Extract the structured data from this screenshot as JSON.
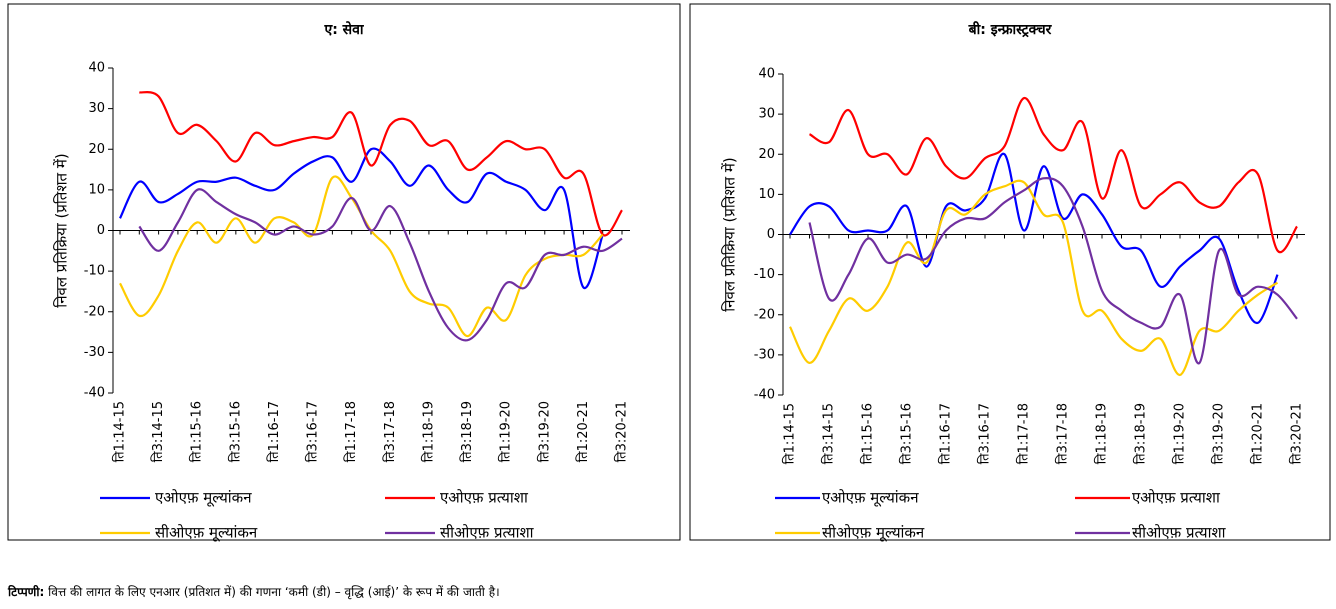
{
  "chart_data": [
    {
      "type": "line",
      "title": "ए: सेवा",
      "y_label": "निवल प्रतिक्रिया (प्रतिशत में)",
      "categories": [
        "ति1:14-15",
        null,
        "ति3:14-15",
        null,
        "ति1:15-16",
        null,
        "ति3:15-16",
        null,
        "ति1:16-17",
        null,
        "ति3:16-17",
        null,
        "ति1:17-18",
        null,
        "ति3:17-18",
        null,
        "ति1:18-19",
        null,
        "ति3:18-19",
        null,
        "ति1:19-20",
        null,
        "ति3:19-20",
        null,
        "ति1:20-21",
        null,
        "ति3:20-21"
      ],
      "ylim": [
        -40,
        40
      ],
      "yticks": [
        -40,
        -30,
        -20,
        -10,
        0,
        10,
        20,
        30,
        40
      ],
      "series": [
        {
          "name": "एओएफ़ मूल्यांकन",
          "color": "#0000ff",
          "values": [
            3,
            12,
            7,
            9,
            12,
            12,
            13,
            11,
            10,
            14,
            17,
            18,
            12,
            20,
            17,
            11,
            16,
            10,
            7,
            14,
            12,
            10,
            5,
            10,
            -14,
            -1,
            null
          ]
        },
        {
          "name": "एओएफ़ प्रत्याशा",
          "color": "#ff0000",
          "values": [
            null,
            34,
            33,
            24,
            26,
            22,
            17,
            24,
            21,
            22,
            23,
            23,
            29,
            16,
            26,
            27,
            21,
            22,
            15,
            18,
            22,
            20,
            20,
            13,
            14,
            -1,
            5
          ]
        },
        {
          "name": "सीओएफ़ मूल्यांकन",
          "color": "#ffcc00",
          "values": [
            -13,
            -21,
            -16,
            -5,
            2,
            -3,
            3,
            -3,
            3,
            2,
            -1,
            13,
            8,
            0,
            -5,
            -15,
            -18,
            -19,
            -26,
            -19,
            -22,
            -11,
            -7,
            -6,
            -6,
            -1,
            null
          ]
        },
        {
          "name": "सीओएफ़ प्रत्याशा",
          "color": "#7030a0",
          "values": [
            null,
            1,
            -5,
            2,
            10,
            7,
            4,
            2,
            -1,
            1,
            -1,
            1,
            8,
            0,
            6,
            -3,
            -15,
            -24,
            -27,
            -22,
            -13,
            -14,
            -6,
            -6,
            -4,
            -5,
            -2
          ]
        }
      ]
    },
    {
      "type": "line",
      "title": "बी: इन्फ्रास्ट्रक्चर",
      "y_label": "निवल प्रतिक्रिया (प्रतिशत में)",
      "categories": [
        "ति1:14-15",
        null,
        "ति3:14-15",
        null,
        "ति1:15-16",
        null,
        "ति3:15-16",
        null,
        "ति1:16-17",
        null,
        "ति3:16-17",
        null,
        "ति1:17-18",
        null,
        "ति3:17-18",
        null,
        "ति1:18-19",
        null,
        "ति3:18-19",
        null,
        "ति1:19-20",
        null,
        "ति3:19-20",
        null,
        "ति1:20-21",
        null,
        "ति3:20-21"
      ],
      "ylim": [
        -40,
        40
      ],
      "yticks": [
        -40,
        -30,
        -20,
        -10,
        0,
        10,
        20,
        30,
        40
      ],
      "series": [
        {
          "name": "एओएफ़ मूल्यांकन",
          "color": "#0000ff",
          "values": [
            0,
            7,
            7,
            1,
            1,
            1,
            7,
            -8,
            7,
            6,
            9,
            20,
            1,
            17,
            4,
            10,
            5,
            -3,
            -4,
            -13,
            -8,
            -4,
            -1,
            -14,
            -22,
            -10,
            null
          ]
        },
        {
          "name": "एओएफ़ प्रत्याशा",
          "color": "#ff0000",
          "values": [
            null,
            25,
            23,
            31,
            20,
            20,
            15,
            24,
            17,
            14,
            19,
            22,
            34,
            25,
            21,
            28,
            9,
            21,
            7,
            10,
            13,
            8,
            7,
            13,
            15,
            -4,
            2
          ]
        },
        {
          "name": "सीओएफ़ मूल्यांकन",
          "color": "#ffcc00",
          "values": [
            -23,
            -32,
            -24,
            -16,
            -19,
            -13,
            -2,
            -7,
            6,
            5,
            10,
            12,
            13,
            5,
            3,
            -19,
            -19,
            -26,
            -29,
            -26,
            -35,
            -24,
            -24,
            -19,
            -15,
            -12,
            null
          ]
        },
        {
          "name": "सीओएफ़ प्रत्याशा",
          "color": "#7030a0",
          "values": [
            null,
            3,
            -16,
            -10,
            -1,
            -7,
            -5,
            -6,
            1,
            4,
            4,
            8,
            11,
            14,
            12,
            2,
            -14,
            -19,
            -22,
            -23,
            -15,
            -32,
            -4,
            -15,
            -13,
            -15,
            -21
          ]
        }
      ]
    }
  ],
  "note": {
    "label": "टिप्पणी:",
    "text": " वित्त की लागत के लिए एनआर (प्रतिशत में) की गणना ‘कमी (डी) – वृद्धि (आई)’ के रूप में की जाती है।"
  }
}
